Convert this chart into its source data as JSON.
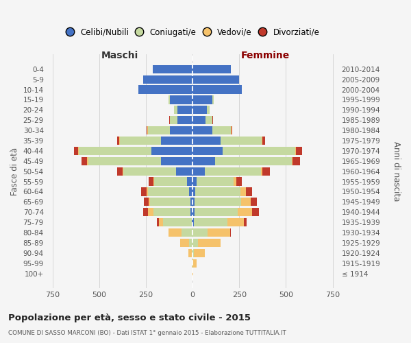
{
  "age_groups": [
    "100+",
    "95-99",
    "90-94",
    "85-89",
    "80-84",
    "75-79",
    "70-74",
    "65-69",
    "60-64",
    "55-59",
    "50-54",
    "45-49",
    "40-44",
    "35-39",
    "30-34",
    "25-29",
    "20-24",
    "15-19",
    "10-14",
    "5-9",
    "0-4"
  ],
  "birth_years": [
    "≤ 1914",
    "1915-1919",
    "1920-1924",
    "1925-1929",
    "1930-1934",
    "1935-1939",
    "1940-1944",
    "1945-1949",
    "1950-1954",
    "1955-1959",
    "1960-1964",
    "1965-1969",
    "1970-1974",
    "1975-1979",
    "1980-1984",
    "1985-1989",
    "1990-1994",
    "1995-1999",
    "2000-2004",
    "2005-2009",
    "2010-2014"
  ],
  "male": {
    "celibi": [
      0,
      0,
      0,
      0,
      0,
      5,
      10,
      10,
      20,
      30,
      90,
      170,
      220,
      170,
      120,
      80,
      80,
      120,
      290,
      265,
      215
    ],
    "coniugati": [
      0,
      2,
      5,
      18,
      60,
      155,
      200,
      220,
      220,
      175,
      280,
      390,
      390,
      220,
      120,
      40,
      20,
      10,
      0,
      0,
      0
    ],
    "vedovi": [
      0,
      3,
      18,
      50,
      70,
      20,
      30,
      5,
      5,
      5,
      5,
      5,
      5,
      3,
      2,
      2,
      0,
      0,
      0,
      0,
      0
    ],
    "divorziati": [
      0,
      0,
      0,
      0,
      0,
      10,
      25,
      25,
      30,
      25,
      30,
      30,
      20,
      10,
      5,
      2,
      0,
      0,
      0,
      0,
      0
    ]
  },
  "female": {
    "nubili": [
      0,
      0,
      0,
      0,
      0,
      5,
      10,
      10,
      15,
      20,
      65,
      120,
      160,
      150,
      105,
      70,
      75,
      105,
      265,
      250,
      205
    ],
    "coniugate": [
      0,
      2,
      5,
      30,
      80,
      180,
      230,
      250,
      240,
      200,
      300,
      410,
      390,
      220,
      100,
      35,
      15,
      8,
      0,
      0,
      0
    ],
    "vedove": [
      2,
      20,
      60,
      120,
      120,
      90,
      80,
      50,
      30,
      15,
      10,
      5,
      5,
      3,
      2,
      1,
      0,
      0,
      0,
      0,
      0
    ],
    "divorziate": [
      0,
      0,
      0,
      0,
      5,
      15,
      35,
      35,
      35,
      30,
      40,
      40,
      30,
      15,
      5,
      2,
      1,
      0,
      0,
      0,
      0
    ]
  },
  "color_celibi": "#4472c4",
  "color_coniugati": "#c5d9a0",
  "color_vedovi": "#f5c26b",
  "color_divorziati": "#c0392b",
  "bg_color": "#f5f5f5",
  "grid_color": "#cccccc",
  "title": "Popolazione per età, sesso e stato civile - 2015",
  "subtitle": "COMUNE DI SASSO MARCONI (BO) - Dati ISTAT 1° gennaio 2015 - Elaborazione TUTTITALIA.IT",
  "xlabel_left": "Maschi",
  "xlabel_right": "Femmine",
  "ylabel_left": "Fasce di età",
  "ylabel_right": "Anni di nascita",
  "xlim": 780,
  "legend_labels": [
    "Celibi/Nubili",
    "Coniugati/e",
    "Vedovi/e",
    "Divorziati/e"
  ]
}
